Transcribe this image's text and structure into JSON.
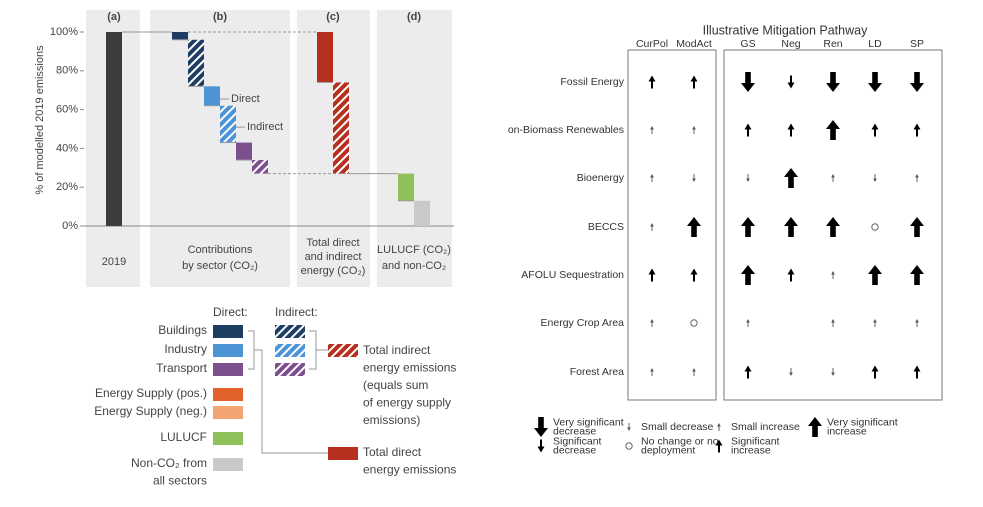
{
  "chart_data": [
    {
      "type": "waterfall",
      "ylabel": "% of modelled 2019 emissions",
      "ylim": [
        0,
        100
      ],
      "yticks": [
        {
          "value": 0,
          "label": "0%"
        },
        {
          "value": 20,
          "label": "20%"
        },
        {
          "value": 40,
          "label": "40%"
        },
        {
          "value": 60,
          "label": "60%"
        },
        {
          "value": 80,
          "label": "80%"
        },
        {
          "value": 100,
          "label": "100%"
        }
      ],
      "groups": [
        {
          "label": "(a)",
          "category": [
            "2019"
          ],
          "bars": [
            {
              "value": 100,
              "color": "#3c3c3c"
            }
          ]
        },
        {
          "label": "(b)",
          "category": [
            "Contributions",
            "by sector (CO₂)"
          ],
          "bars": [
            {
              "value": 4,
              "color": "#1d3d63"
            },
            {
              "value": 24,
              "color": "#1d3d63",
              "hatched": true
            },
            {
              "value": 10,
              "color": "#4d94d6",
              "annotation": "Direct"
            },
            {
              "value": 19,
              "color": "#4d94d6",
              "hatched": true,
              "annotation": "Indirect"
            },
            {
              "value": 9,
              "color": "#7e4f8e"
            },
            {
              "value": 7,
              "color": "#7e4f8e",
              "hatched": true
            }
          ]
        },
        {
          "label": "(c)",
          "category": [
            "Total direct",
            "and indirect",
            "energy (CO₂)"
          ],
          "bars": [
            {
              "value": 26,
              "color": "#b5301f"
            },
            {
              "value": 47,
              "color": "#b5301f",
              "hatched": true
            }
          ]
        },
        {
          "label": "(d)",
          "category": [
            "LULUCF (CO₂)",
            "and non-CO₂"
          ],
          "bars": [
            {
              "value": 14,
              "color": "#8fc15a"
            },
            {
              "value": 13,
              "color": "#c9c9c7"
            }
          ]
        }
      ],
      "legend": {
        "direct_title": "Direct:",
        "indirect_title": "Indirect:",
        "items": [
          {
            "label": [
              "Buildings"
            ],
            "color": "#1d3d63"
          },
          {
            "label": [
              "Industry"
            ],
            "color": "#4d94d6"
          },
          {
            "label": [
              "Transport"
            ],
            "color": "#7e4f8e"
          },
          {
            "label": [
              "Total indirect",
              "energy emissions",
              "(equals sum",
              "of energy supply",
              "emissions)"
            ],
            "color": "#b5301f",
            "hatched": true
          },
          {
            "label": [
              "Energy Supply (pos.)"
            ],
            "color": "#e2622b"
          },
          {
            "label": [
              "Energy Supply (neg.)"
            ],
            "color": "#f2a472"
          },
          {
            "label": [
              "LULUCF"
            ],
            "color": "#8fc15a"
          },
          {
            "label": [
              "Non-CO₂ from",
              "all sectors"
            ],
            "color": "#c9c9c7"
          },
          {
            "label": [
              "Total direct",
              "energy emissions"
            ],
            "color": "#b5301f"
          }
        ]
      }
    },
    {
      "type": "matrix",
      "title": "Illustrative Mitigation Pathway",
      "columns": [
        "CurPol",
        "ModAct",
        "GS",
        "Neg",
        "Ren",
        "LD",
        "SP"
      ],
      "rows": [
        "Fossil Energy",
        "on-Biomass Renewables",
        "Bioenergy",
        "BECCS",
        "AFOLU Sequestration",
        "Energy Crop Area",
        "Forest Area"
      ],
      "cells": [
        [
          2,
          2,
          -3,
          -2,
          -3,
          -3,
          -3
        ],
        [
          1,
          1,
          2,
          2,
          3,
          2,
          2
        ],
        [
          1,
          -1,
          -1,
          3,
          1,
          -1,
          1
        ],
        [
          1,
          3,
          3,
          3,
          3,
          0,
          3
        ],
        [
          2,
          2,
          3,
          2,
          1,
          3,
          3
        ],
        [
          1,
          0,
          1,
          null,
          1,
          1,
          1
        ],
        [
          1,
          1,
          2,
          -1,
          -1,
          2,
          2
        ]
      ],
      "legend": [
        {
          "level": -3,
          "label": [
            "Very significant",
            "decrease"
          ]
        },
        {
          "level": -2,
          "label": [
            "Significant",
            "decrease"
          ]
        },
        {
          "level": -1,
          "label": [
            "Small decrease"
          ]
        },
        {
          "level": 0,
          "label": [
            "No change or no",
            "deployment"
          ]
        },
        {
          "level": 1,
          "label": [
            "Small increase"
          ]
        },
        {
          "level": 2,
          "label": [
            "Significant",
            "increase"
          ]
        },
        {
          "level": 3,
          "label": [
            "Very significant",
            "increase"
          ]
        }
      ]
    }
  ]
}
